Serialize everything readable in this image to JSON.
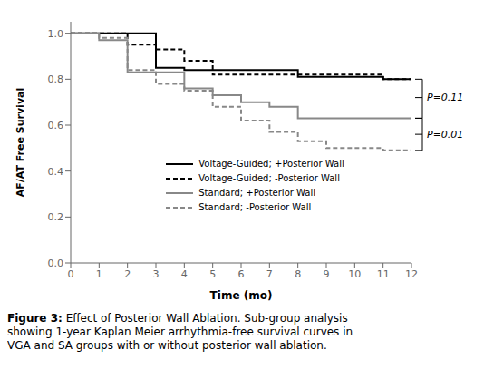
{
  "chart_data": {
    "type": "line",
    "line_shape": "step",
    "xlabel": "Time (mo)",
    "ylabel": "AF/AT Free Survival",
    "series": [
      {
        "name": "Voltage-Guided; +Posterior Wall",
        "color": "#000000",
        "line_style": "solid",
        "x": [
          0,
          1,
          2,
          3,
          3,
          4,
          4,
          5,
          6,
          7,
          8,
          9,
          10,
          11,
          12
        ],
        "values": [
          1.0,
          1.0,
          1.0,
          1.0,
          0.85,
          0.85,
          0.84,
          0.84,
          0.84,
          0.84,
          0.81,
          0.81,
          0.81,
          0.8,
          0.8
        ]
      },
      {
        "name": "Voltage-Guided; -Posterior Wall",
        "color": "#000000",
        "line_style": "dashed",
        "x": [
          0,
          1,
          2,
          2,
          3,
          4,
          4,
          5,
          5,
          6,
          7,
          8,
          9,
          10,
          11,
          12
        ],
        "values": [
          1.0,
          1.0,
          1.0,
          0.95,
          0.93,
          0.93,
          0.88,
          0.88,
          0.82,
          0.82,
          0.82,
          0.82,
          0.82,
          0.82,
          0.8,
          0.8
        ]
      },
      {
        "name": "Standard; +Posterior Wall",
        "color": "#888888",
        "line_style": "solid",
        "x": [
          0,
          1,
          1,
          2,
          2,
          3,
          4,
          5,
          6,
          7,
          8,
          9,
          10,
          11,
          12
        ],
        "values": [
          1.0,
          1.0,
          0.97,
          0.97,
          0.83,
          0.83,
          0.76,
          0.73,
          0.7,
          0.68,
          0.63,
          0.63,
          0.63,
          0.63,
          0.63
        ]
      },
      {
        "name": "Standard; -Posterior Wall",
        "color": "#888888",
        "line_style": "dashed",
        "x": [
          0,
          1,
          1,
          2,
          2,
          3,
          3,
          4,
          5,
          6,
          7,
          8,
          9,
          10,
          11,
          12
        ],
        "values": [
          1.0,
          1.0,
          0.98,
          0.98,
          0.84,
          0.84,
          0.78,
          0.75,
          0.68,
          0.62,
          0.57,
          0.53,
          0.5,
          0.5,
          0.49,
          0.49
        ]
      }
    ],
    "xlim": [
      0,
      12
    ],
    "ylim": [
      0,
      1.05
    ],
    "xticks": [
      0,
      1,
      2,
      3,
      4,
      5,
      6,
      7,
      8,
      9,
      10,
      11,
      12
    ],
    "yticks": [
      {
        "value": 0,
        "label": "0.0"
      },
      0.2,
      0.4,
      0.6,
      0.8,
      {
        "value": 1.0,
        "label": "1.0"
      }
    ],
    "grid": false,
    "legend": "lower left",
    "annotations": [
      {
        "text": "P=0.11",
        "y_top": 0.8,
        "y": 0.72,
        "y_bottom": 0.63
      },
      {
        "text": "P=0.01",
        "y_top": 0.63,
        "y": 0.56,
        "y_bottom": 0.49
      }
    ],
    "caption_bold": "Figure 3:",
    "caption": " Effect of Posterior Wall Ablation. Sub-group analysis\nshowing 1-year Kaplan Meier arrhythmia-free survival curves in\nVGA and SA groups with or without posterior wall ablation."
  }
}
